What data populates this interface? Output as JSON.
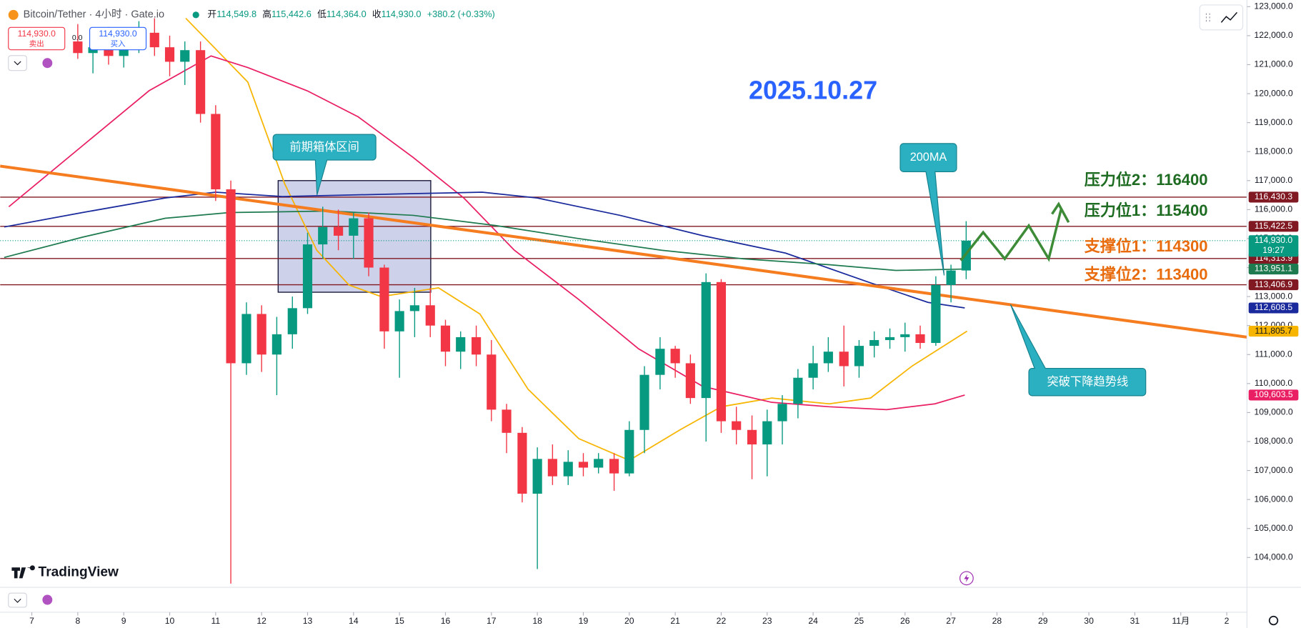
{
  "header": {
    "symbol": "Bitcoin/Tether · 4小时 · Gate.io",
    "ohlc": [
      {
        "label": "开",
        "value": "114,549.8"
      },
      {
        "label": "高",
        "value": "115,442.6"
      },
      {
        "label": "低",
        "value": "114,364.0"
      },
      {
        "label": "收",
        "value": "114,930.0"
      }
    ],
    "change": "+380.2 (+0.33%)",
    "sell_price": "114,930.0",
    "sell_label": "卖出",
    "spread": "0.0",
    "buy_price": "114,930.0",
    "buy_label": "买入",
    "brand": "TradingView"
  },
  "chart_data": {
    "type": "candlestick",
    "x": [
      8,
      8.33,
      8.67,
      9,
      9.33,
      9.67,
      10,
      10.33,
      10.67,
      11,
      11.33,
      11.67,
      12,
      12.33,
      12.67,
      13,
      13.33,
      13.67,
      14,
      14.33,
      14.67,
      15,
      15.33,
      15.67,
      16,
      16.33,
      16.67,
      17,
      17.33,
      17.67,
      18,
      18.33,
      18.67,
      19,
      19.33,
      19.67,
      20,
      20.33,
      20.67,
      21,
      21.33,
      21.67,
      22,
      22.33,
      22.67,
      23,
      23.33,
      23.67,
      24,
      24.33,
      24.67,
      25,
      25.33,
      25.67,
      26,
      26.33,
      26.67,
      27,
      27.33
    ],
    "series": [
      {
        "up_color": "#089981",
        "down_color": "#f23645",
        "open": [
          121800,
          121400,
          121600,
          121300,
          121900,
          122100,
          121600,
          121100,
          121500,
          119300,
          116700,
          110700,
          112400,
          111000,
          111700,
          112600,
          114800,
          115400,
          115100,
          115700,
          114000,
          111800,
          112500,
          112700,
          112000,
          111100,
          111600,
          111000,
          109100,
          108300,
          106200,
          107400,
          106800,
          107300,
          107100,
          107400,
          106900,
          108400,
          110300,
          111200,
          110700,
          109500,
          113500,
          108700,
          108400,
          107900,
          108700,
          109300,
          110200,
          110700,
          111100,
          110600,
          111300,
          111500,
          111600,
          111700,
          111400,
          113400,
          113900
        ],
        "high": [
          122400,
          121900,
          122300,
          122200,
          122500,
          122600,
          122000,
          121800,
          121800,
          119600,
          117000,
          112800,
          112700,
          112300,
          113000,
          115200,
          116100,
          116000,
          115900,
          115900,
          114100,
          112900,
          113300,
          113300,
          112200,
          111800,
          112000,
          111500,
          109300,
          108500,
          107800,
          107900,
          107700,
          107600,
          107600,
          107600,
          108700,
          110600,
          111600,
          111300,
          111000,
          113800,
          113600,
          109200,
          108900,
          109100,
          109600,
          110500,
          111300,
          111600,
          112000,
          111500,
          111800,
          111900,
          112100,
          112000,
          113700,
          114100,
          115600
        ],
        "low": [
          121200,
          120700,
          121000,
          120900,
          121400,
          121300,
          120600,
          120300,
          119000,
          116300,
          103100,
          110300,
          110400,
          109600,
          111200,
          112400,
          114300,
          114600,
          114300,
          113700,
          111200,
          110200,
          111600,
          111600,
          110600,
          110500,
          110600,
          108700,
          107600,
          105900,
          103600,
          106500,
          106500,
          106800,
          106900,
          106300,
          106800,
          107600,
          109800,
          110200,
          109300,
          108000,
          108300,
          107900,
          106700,
          106800,
          107900,
          108800,
          109800,
          110400,
          109900,
          110200,
          110900,
          111200,
          111100,
          111200,
          111300,
          112800,
          113600
        ],
        "close": [
          121400,
          121600,
          121300,
          121900,
          122100,
          121600,
          121100,
          121500,
          119300,
          116700,
          110700,
          112400,
          111000,
          111700,
          112600,
          114800,
          115400,
          115100,
          115700,
          114000,
          111800,
          112500,
          112700,
          112000,
          111100,
          111600,
          111000,
          109100,
          108300,
          106200,
          107400,
          106800,
          107300,
          107100,
          107400,
          106900,
          108400,
          110300,
          111200,
          110700,
          109500,
          113500,
          108700,
          108400,
          107900,
          108700,
          109300,
          110200,
          110700,
          111100,
          110600,
          111300,
          111500,
          111600,
          111700,
          111400,
          113400,
          113900,
          114930
        ]
      }
    ],
    "lines": [
      {
        "color": "#f7b500",
        "text_color": "#131722",
        "label": "111,805.7",
        "x": [
          10.35,
          11.7,
          12.5,
          13.2,
          13.9,
          14.6,
          15.85,
          16.75,
          17.8,
          18.9,
          20,
          21.1,
          22,
          23.1,
          24.35,
          25.25,
          26.15,
          27.35
        ],
        "values": [
          122600,
          120400,
          116900,
          114600,
          113400,
          113000,
          113300,
          112400,
          109800,
          108100,
          107350,
          108400,
          109200,
          109500,
          109300,
          109500,
          110600,
          111805.7
        ]
      },
      {
        "color": "#e91e63",
        "text_color": "#ffffff",
        "label": "109,603.5",
        "x": [
          6.5,
          8.1,
          9.55,
          10.9,
          11.7,
          12.99,
          14.1,
          15.3,
          16.4,
          17.5,
          18.9,
          20.2,
          21.6,
          23.1,
          24.35,
          25.6,
          26.65,
          27.3
        ],
        "values": [
          116100,
          118200,
          120100,
          121300,
          120900,
          120100,
          119200,
          117800,
          116400,
          114600,
          112900,
          111200,
          109900,
          109350,
          109200,
          109100,
          109300,
          109603.5
        ]
      },
      {
        "color": "#1a2a9c",
        "text_color": "#ffffff",
        "label": "112,608.5",
        "x": [
          6.4,
          8.1,
          9.9,
          11,
          12.45,
          15.3,
          16.8,
          18,
          19.8,
          21.6,
          23.4,
          25.2,
          26.5,
          27.3
        ],
        "values": [
          115400,
          115900,
          116400,
          116600,
          116450,
          116550,
          116600,
          116400,
          115800,
          115100,
          114500,
          113500,
          112800,
          112608.5
        ]
      },
      {
        "color": "#1e7a4f",
        "text_color": "#ffffff",
        "label": "113,951.1",
        "x": [
          6.4,
          8.1,
          9.9,
          11.3,
          13.5,
          15.3,
          17.1,
          18.9,
          20.7,
          22.5,
          24.35,
          25.8,
          27.3
        ],
        "values": [
          114350,
          115050,
          115700,
          115900,
          115950,
          115800,
          115450,
          115000,
          114600,
          114300,
          114100,
          113900,
          113951.1
        ]
      }
    ],
    "trendline": {
      "color": "#f57c1f",
      "x": [
        6.31,
        33.44
      ],
      "values": [
        117500,
        111600
      ]
    },
    "levels": [
      {
        "value": 116430.3,
        "label": "116,430.3",
        "color": "#801922"
      },
      {
        "value": 115422.5,
        "label": "115,422.5",
        "color": "#801922"
      },
      {
        "value": 114313.9,
        "label": "114,313.9",
        "color": "#801922"
      },
      {
        "value": 113406.9,
        "label": "113,406.9",
        "color": "#801922"
      }
    ],
    "current": {
      "value": 114930,
      "label": "114,930.0",
      "timer": "19:27",
      "color": "#089981"
    },
    "box": {
      "x": [
        12.36,
        15.68
      ],
      "values": [
        113150,
        117000
      ],
      "color": "#3949ab"
    },
    "annotations": {
      "date": "2025.10.27",
      "box_label": "前期箱体区间",
      "ma_label": "200MA",
      "break_label": "突破下降趋势线",
      "resistance": [
        "压力位2：116400",
        "压力位1：115400"
      ],
      "support": [
        "支撑位1：114300",
        "支撑位2：113400"
      ]
    },
    "xlim": [
      6.31,
      33.44
    ],
    "ylim": [
      102970,
      123230
    ],
    "xticks": [
      7,
      8,
      9,
      10,
      11,
      12,
      13,
      14,
      15,
      16,
      17,
      18,
      19,
      20,
      21,
      22,
      23,
      24,
      25,
      26,
      27,
      28,
      29,
      30,
      31,
      {
        "value": 32,
        "label": "11月"
      },
      {
        "value": 33,
        "label": "2"
      }
    ],
    "yticks": [
      {
        "value": 123000,
        "label": "123,000.0"
      },
      {
        "value": 122000,
        "label": "122,000.0"
      },
      {
        "value": 121000,
        "label": "121,000.0"
      },
      {
        "value": 120000,
        "label": "120,000.0"
      },
      {
        "value": 119000,
        "label": "119,000.0"
      },
      {
        "value": 118000,
        "label": "118,000.0"
      },
      {
        "value": 117000,
        "label": "117,000.0"
      },
      {
        "value": 116000,
        "label": "116,000.0"
      },
      {
        "value": 115000,
        "label": "115,000.0"
      },
      {
        "value": 114000,
        "label": "114,000.0"
      },
      {
        "value": 113000,
        "label": "113,000.0"
      },
      {
        "value": 112000,
        "label": "112,000.0"
      },
      {
        "value": 111000,
        "label": "111,000.0"
      },
      {
        "value": 110000,
        "label": "110,000.0"
      },
      {
        "value": 109000,
        "label": "109,000.0"
      },
      {
        "value": 108000,
        "label": "108,000.0"
      },
      {
        "value": 107000,
        "label": "107,000.0"
      },
      {
        "value": 106000,
        "label": "106,000.0"
      },
      {
        "value": 105000,
        "label": "105,000.0"
      },
      {
        "value": 104000,
        "label": "104,000.0"
      }
    ],
    "grid": false
  }
}
